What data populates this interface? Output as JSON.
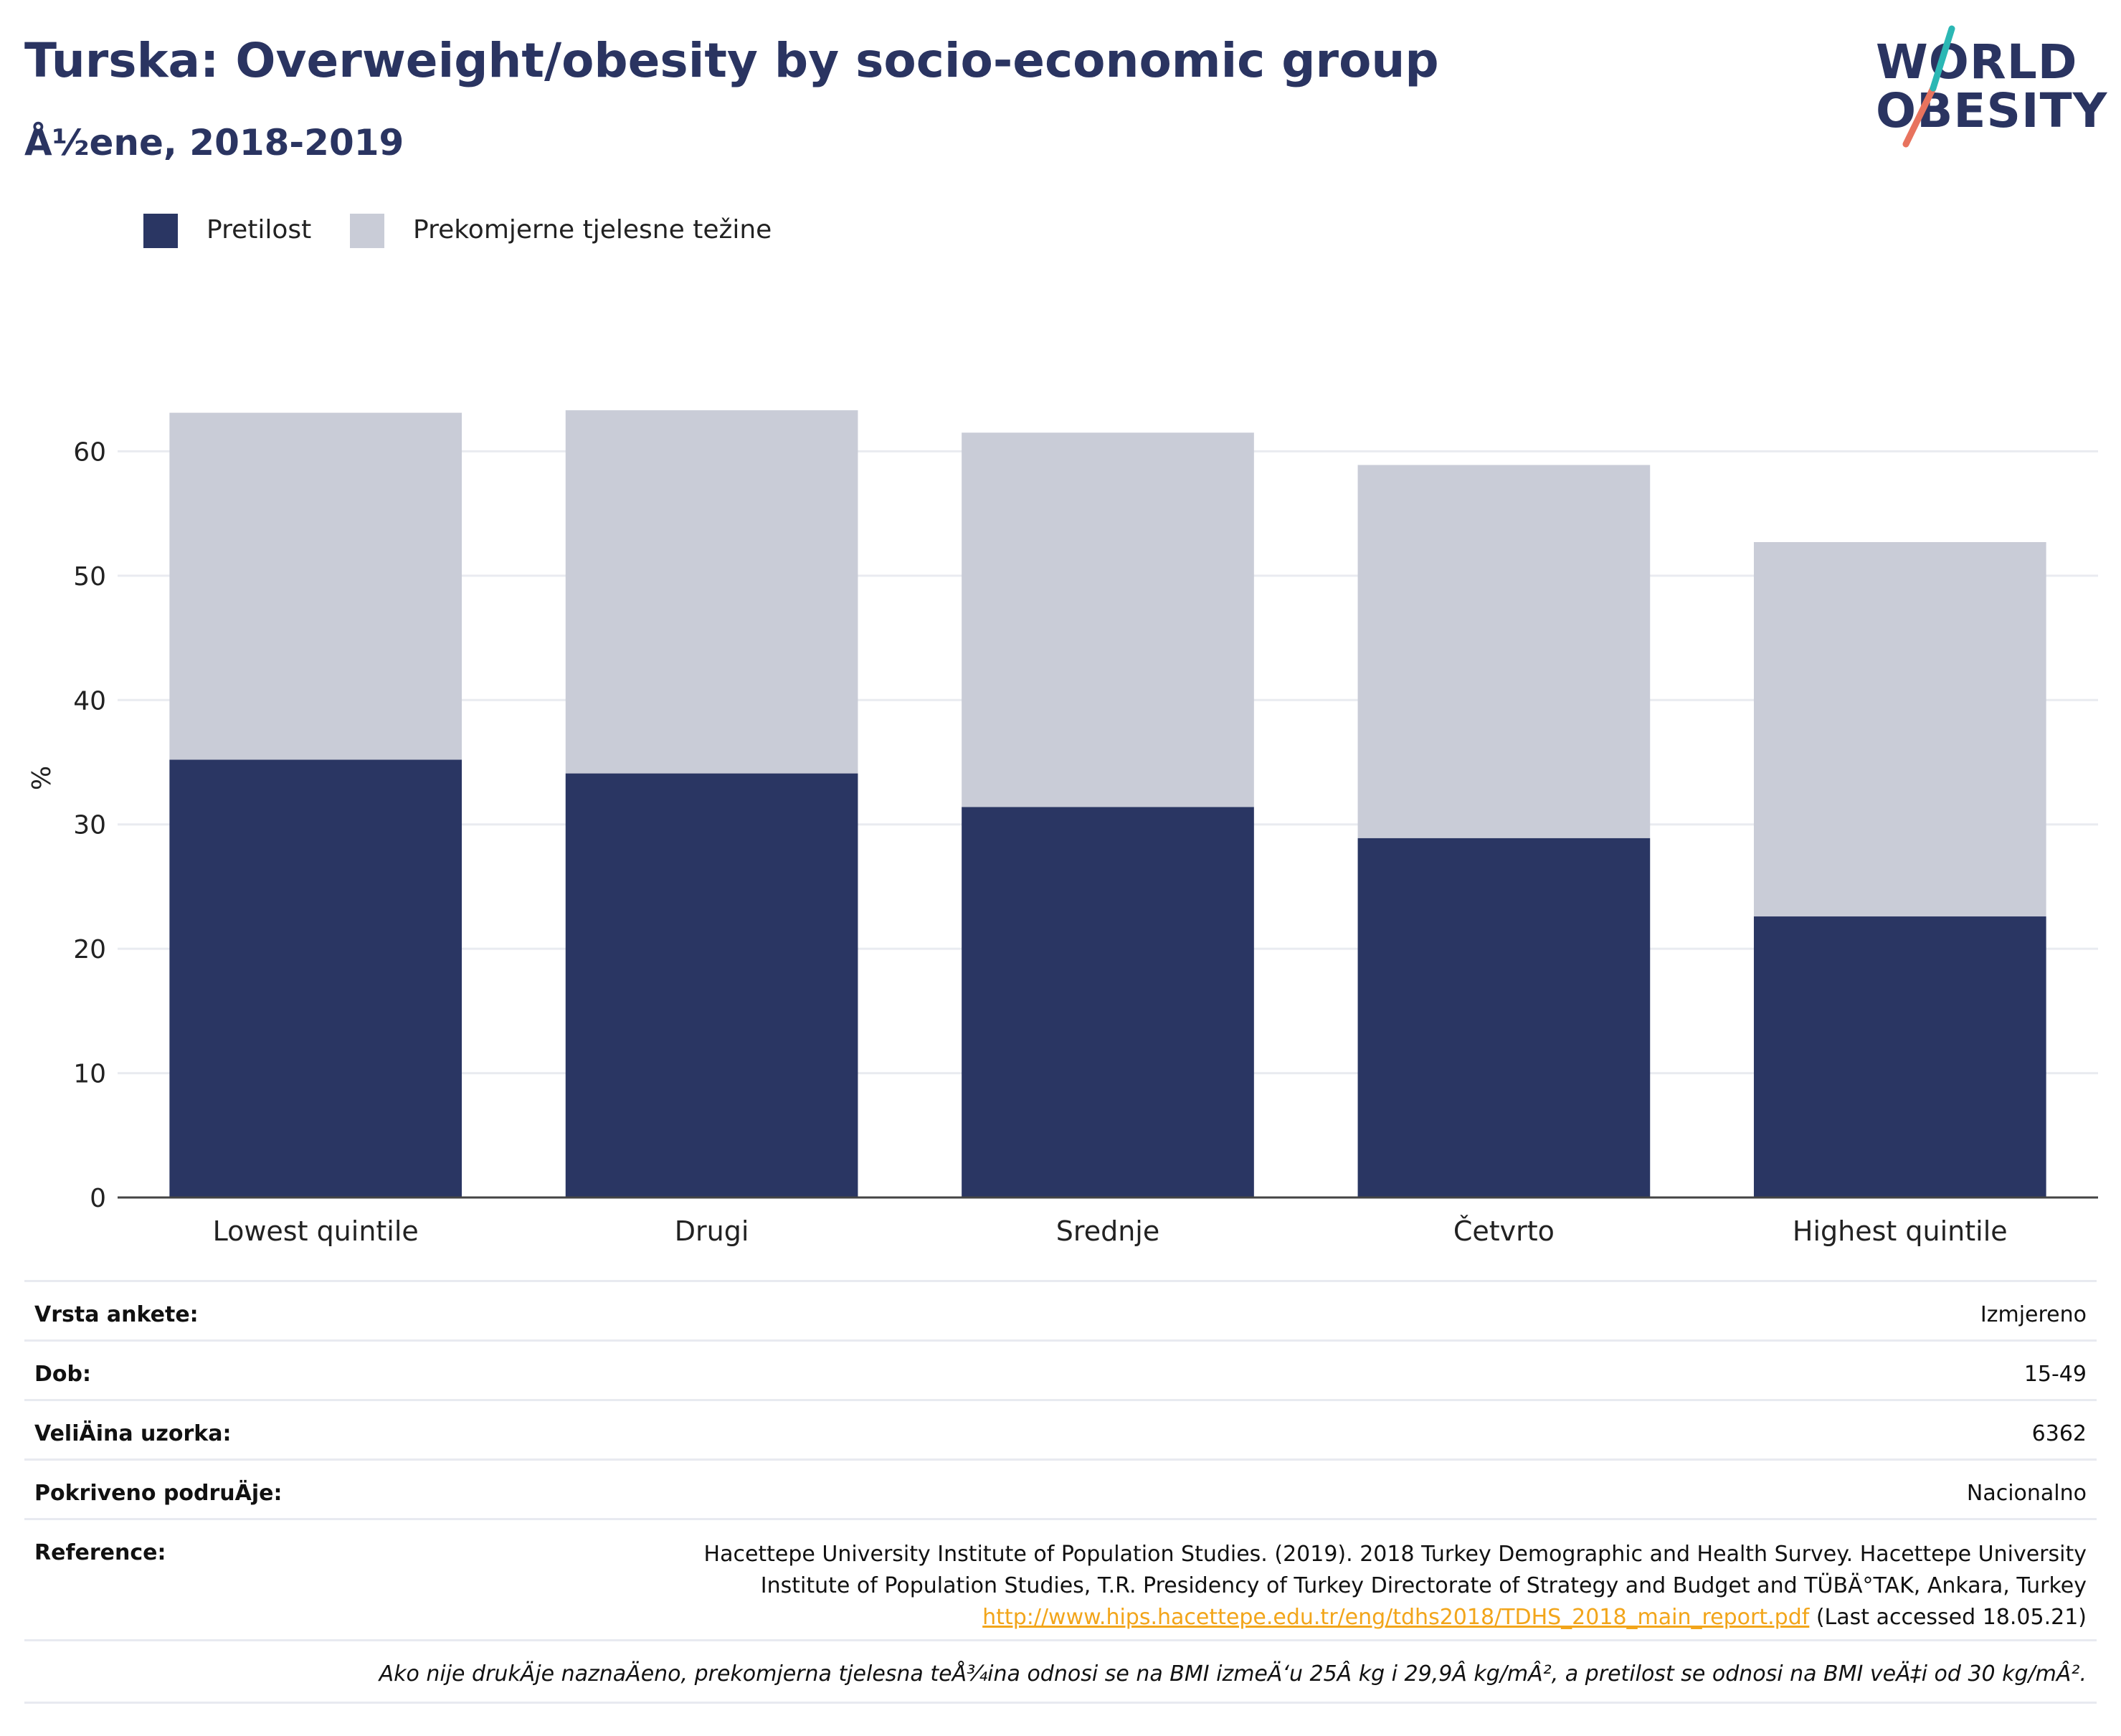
{
  "header": {
    "title": "Turska: Overweight/obesity by socio-economic group",
    "subtitle": "Å½ene, 2018-2019"
  },
  "logo": {
    "line1": "WORLD",
    "line2": "OBESITY"
  },
  "colors": {
    "obesity": "#2a3663",
    "overweight": "#c9ccd7",
    "title": "#2a3461",
    "logo_teal": "#2bb7b4",
    "logo_coral": "#e8735e",
    "link": "#f2a51a"
  },
  "legend": [
    {
      "label": "Pretilost",
      "color": "#2a3663"
    },
    {
      "label": "Prekomjerne tjelesne težine",
      "color": "#c9ccd7"
    }
  ],
  "chart_data": {
    "type": "bar",
    "stacked": true,
    "categories": [
      "Lowest quintile",
      "Drugi",
      "Srednje",
      "Četvrto",
      "Highest quintile"
    ],
    "series": [
      {
        "name": "Pretilost",
        "values": [
          35.2,
          34.1,
          31.4,
          28.9,
          22.6
        ]
      },
      {
        "name": "Prekomjerne tjelesne težine",
        "values": [
          27.9,
          29.2,
          30.1,
          30.0,
          30.1
        ]
      }
    ],
    "ylabel": "%",
    "ylim": [
      0,
      64
    ],
    "yticks": [
      0,
      10,
      20,
      30,
      40,
      50,
      60
    ],
    "grid": true,
    "legend_position": "top-left"
  },
  "info": {
    "rows": [
      {
        "key": "Vrsta ankete:",
        "value": "Izmjereno"
      },
      {
        "key": "Dob:",
        "value": "15-49"
      },
      {
        "key": "VeliÄ\u001fina uzorka:",
        "value": "6362"
      },
      {
        "key": "Pokriveno podruÄ\u001fje:",
        "value": "Nacionalno"
      }
    ],
    "reference_key": "Reference:",
    "reference_line1": "Hacettepe University Institute of Population Studies. (2019). 2018 Turkey Demographic and Health Survey. Hacettepe University",
    "reference_line2": "Institute of Population Studies, T.R. Presidency of Turkey Directorate of Strategy and Budget and TÜBÄ°TAK, Ankara, Turkey",
    "reference_link": "http://www.hips.hacettepe.edu.tr/eng/tdhs2018/TDHS_2018_main_report.pdf",
    "reference_accessed": "(Last accessed 18.05.21)",
    "note": "Ako nije drukÄ\u001fje naznaÄ\u001feno, prekomjerna tjelesna teÅ¾ina odnosi se na BMI izmeÄ‘u 25Â kg i 29,9Â kg/mÂ², a pretilost se odnosi na BMI veÄ‡i od 30 kg/mÂ²."
  }
}
